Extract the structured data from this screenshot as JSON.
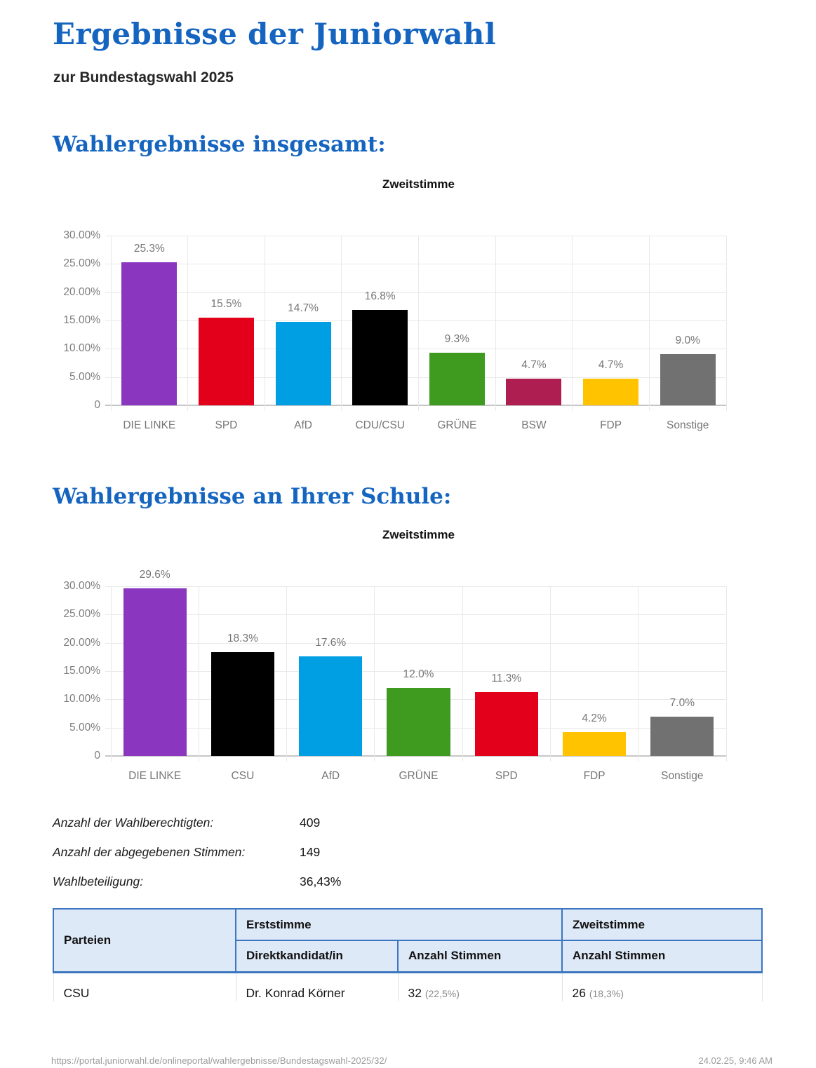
{
  "header": {
    "title": "Ergebnisse der Juniorwahl",
    "subtitle": "zur Bundestagswahl 2025"
  },
  "sections": {
    "overall_heading": "Wahlergebnisse insgesamt:",
    "school_heading": "Wahlergebnisse an Ihrer Schule:"
  },
  "chart_data": [
    {
      "type": "bar",
      "title": "Zweitstimme",
      "categories": [
        "DIE LINKE",
        "SPD",
        "AfD",
        "CDU/CSU",
        "GRÜNE",
        "BSW",
        "FDP",
        "Sonstige"
      ],
      "values": [
        25.3,
        15.5,
        14.7,
        16.8,
        9.3,
        4.7,
        4.7,
        9.0
      ],
      "bar_labels": [
        "25.3%",
        "15.5%",
        "14.7%",
        "16.8%",
        "9.3%",
        "4.7%",
        "4.7%",
        "9.0%"
      ],
      "bar_colors": [
        "#8A36BF",
        "#E2001A",
        "#009FE3",
        "#000000",
        "#3E9B20",
        "#AF1E51",
        "#FFC300",
        "#717171"
      ],
      "y_ticks": [
        "0",
        "5.00%",
        "10.00%",
        "15.00%",
        "20.00%",
        "25.00%",
        "30.00%"
      ],
      "ylim": [
        0,
        30
      ],
      "xlabel": "",
      "ylabel": "",
      "grid": true,
      "legend": "none"
    },
    {
      "type": "bar",
      "title": "Zweitstimme",
      "categories": [
        "DIE LINKE",
        "CSU",
        "AfD",
        "GRÜNE",
        "SPD",
        "FDP",
        "Sonstige"
      ],
      "values": [
        29.6,
        18.3,
        17.6,
        12.0,
        11.3,
        4.2,
        7.0
      ],
      "bar_labels": [
        "29.6%",
        "18.3%",
        "17.6%",
        "12.0%",
        "11.3%",
        "4.2%",
        "7.0%"
      ],
      "bar_colors": [
        "#8A36BF",
        "#000000",
        "#009FE3",
        "#3E9B20",
        "#E2001A",
        "#FFC300",
        "#717171"
      ],
      "y_ticks": [
        "0",
        "5.00%",
        "10.00%",
        "15.00%",
        "20.00%",
        "25.00%",
        "30.00%"
      ],
      "ylim": [
        0,
        30
      ],
      "xlabel": "",
      "ylabel": "",
      "grid": true,
      "legend": "none"
    }
  ],
  "stats": {
    "rows": [
      {
        "label": "Anzahl der Wahlberechtigten:",
        "value": "409"
      },
      {
        "label": "Anzahl der abgegebenen Stimmen:",
        "value": "149"
      },
      {
        "label": "Wahlbeteiligung:",
        "value": "36,43%"
      }
    ]
  },
  "results_table": {
    "col_parteien": "Parteien",
    "col_erststimme": "Erststimme",
    "col_zweitstimme": "Zweitstimme",
    "col_direktkandidat": "Direktkandidat/in",
    "col_anzahl_stimmen_erst": "Anzahl Stimmen",
    "col_anzahl_stimmen_zweit": "Anzahl Stimmen",
    "rows": [
      {
        "party": "CSU",
        "kandidat": "Dr. Konrad Körner",
        "erst_value": "32",
        "erst_pct": "(22,5%)",
        "zweit_value": "26",
        "zweit_pct": "(18,3%)"
      }
    ]
  },
  "footer": {
    "url": "https://portal.juniorwahl.de/onlineportal/wahlergebnisse/Bundestagswahl-2025/32/",
    "datetime": "24.02.25, 9:46 AM"
  },
  "colors": {
    "heading_blue": "#1565C0",
    "table_header_bg": "#DEE9F7",
    "table_border_blue": "#3B76BF",
    "grid_gray": "#e9e9e9",
    "axis_text_gray": "#7d7d7d"
  }
}
